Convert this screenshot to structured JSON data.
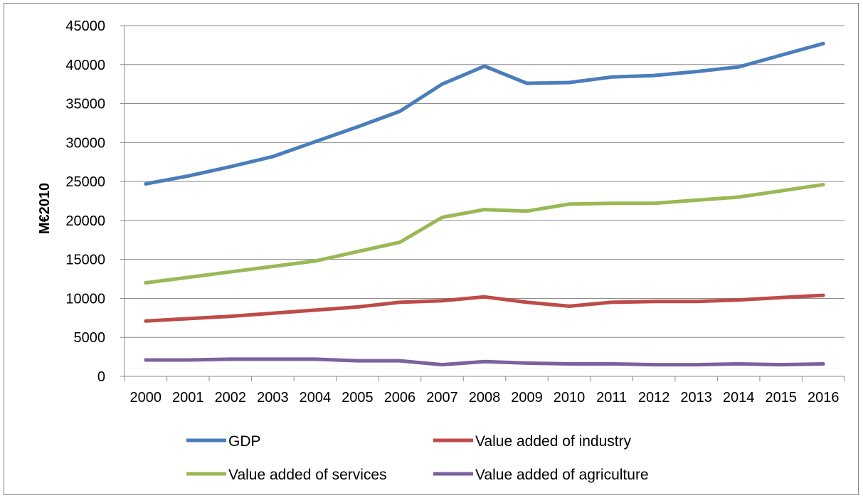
{
  "chart_data": {
    "type": "line",
    "title": "",
    "xlabel": "",
    "ylabel": "M€2010",
    "ylim": [
      0,
      45000
    ],
    "yticks": [
      0,
      5000,
      10000,
      15000,
      20000,
      25000,
      30000,
      35000,
      40000,
      45000
    ],
    "grid": true,
    "legend_position": "bottom",
    "categories": [
      "2000",
      "2001",
      "2002",
      "2003",
      "2004",
      "2005",
      "2006",
      "2007",
      "2008",
      "2009",
      "2010",
      "2011",
      "2012",
      "2013",
      "2014",
      "2015",
      "2016"
    ],
    "series": [
      {
        "name": "GDP",
        "color": "#4a7ebb",
        "values": [
          24700,
          25700,
          26900,
          28200,
          30100,
          32000,
          34000,
          37500,
          39800,
          37600,
          37700,
          38400,
          38600,
          39100,
          39700,
          41200,
          42700
        ]
      },
      {
        "name": "Value added of industry",
        "color": "#be4b48",
        "values": [
          7100,
          7400,
          7700,
          8100,
          8500,
          8900,
          9500,
          9700,
          10200,
          9500,
          9000,
          9500,
          9600,
          9600,
          9800,
          10100,
          10400
        ]
      },
      {
        "name": "Value added of services",
        "color": "#98b954",
        "values": [
          12000,
          12700,
          13400,
          14100,
          14800,
          16000,
          17200,
          20400,
          21400,
          21200,
          22100,
          22200,
          22200,
          22600,
          23000,
          23800,
          24600
        ]
      },
      {
        "name": "Value added of agriculture",
        "color": "#7d60a0",
        "values": [
          2100,
          2100,
          2200,
          2200,
          2200,
          2000,
          2000,
          1500,
          1900,
          1700,
          1600,
          1600,
          1500,
          1500,
          1600,
          1500,
          1600
        ]
      }
    ]
  }
}
